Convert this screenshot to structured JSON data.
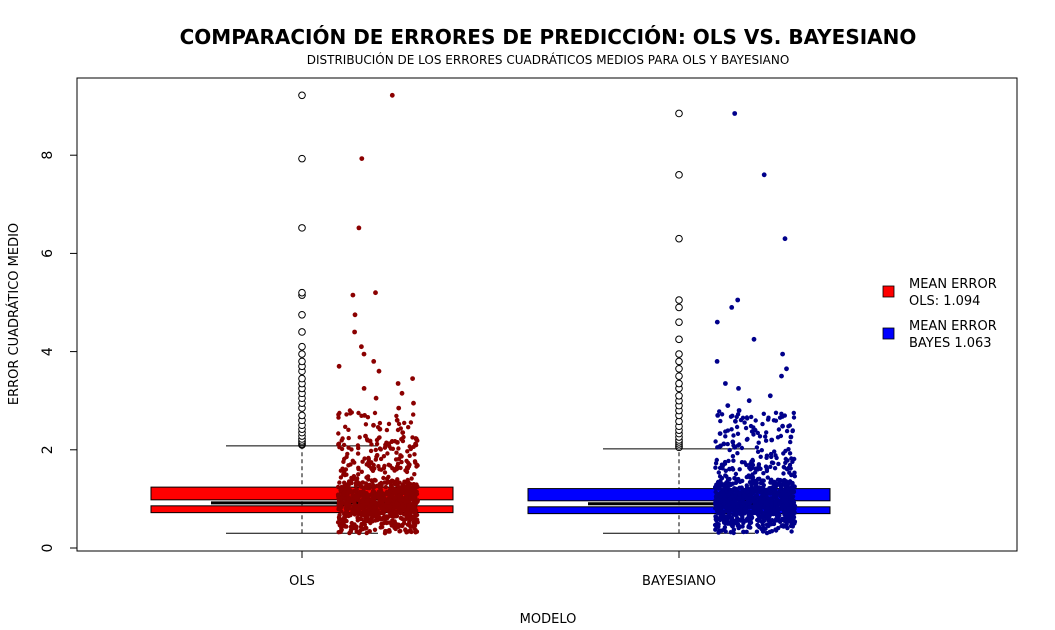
{
  "chart_data": {
    "type": "boxplot",
    "title": "COMPARACIÓN DE ERRORES DE PREDICCIÓN: OLS VS. BAYESIANO",
    "subtitle": "DISTRIBUCIÓN DE LOS ERRORES CUADRÁTICOS MEDIOS PARA OLS Y BAYESIANO",
    "xlabel": "MODELO",
    "ylabel": "ERROR CUADRÁTICO MEDIO",
    "ylim": [
      0,
      9.3
    ],
    "yticks": [
      "0",
      "2",
      "4",
      "6",
      "8"
    ],
    "categories": [
      "OLS",
      "BAYESIANO"
    ],
    "series": [
      {
        "category": "OLS",
        "box_color": "#ff0000",
        "point_color": "#8b0000",
        "min": 0.3,
        "q1": 0.72,
        "median": 0.92,
        "q3": 1.24,
        "whisker_high": 2.08,
        "outliers": [
          2.1,
          2.12,
          2.15,
          2.18,
          2.22,
          2.28,
          2.35,
          2.42,
          2.5,
          2.6,
          2.7,
          2.85,
          2.95,
          3.05,
          3.15,
          3.25,
          3.35,
          3.45,
          3.6,
          3.7,
          3.8,
          3.95,
          4.1,
          4.4,
          4.75,
          5.15,
          5.2,
          6.52,
          7.93,
          9.22
        ]
      },
      {
        "category": "BAYESIANO",
        "box_color": "#0000ff",
        "point_color": "#00008b",
        "min": 0.3,
        "q1": 0.7,
        "median": 0.9,
        "q3": 1.21,
        "whisker_high": 2.02,
        "outliers": [
          2.05,
          2.08,
          2.12,
          2.16,
          2.2,
          2.26,
          2.33,
          2.4,
          2.48,
          2.58,
          2.7,
          2.8,
          2.9,
          3.0,
          3.1,
          3.25,
          3.35,
          3.5,
          3.65,
          3.8,
          3.95,
          4.25,
          4.6,
          4.9,
          5.05,
          6.3,
          7.6,
          8.85
        ]
      }
    ],
    "legend": {
      "placement": "right",
      "entries": [
        {
          "line1": "MEAN ERROR",
          "line2": "OLS: 1.094",
          "color": "#ff0000"
        },
        {
          "line1": "MEAN ERROR",
          "line2": "BAYES 1.063",
          "color": "#0000ff"
        }
      ]
    }
  }
}
